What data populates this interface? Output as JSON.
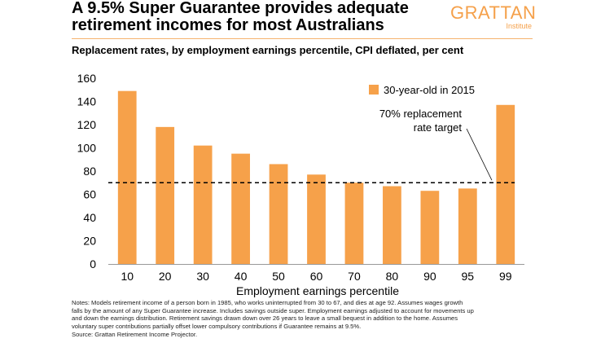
{
  "header": {
    "title_line1": "A 9.5% Super Guarantee provides adequate",
    "title_line2": "retirement incomes for most Australians",
    "subtitle": "Replacement rates, by employment earnings percentile, CPI deflated, per cent"
  },
  "logo": {
    "name": "GRATTAN",
    "sub": "Institute"
  },
  "colors": {
    "bar": "#f6a14a",
    "accent": "#f5a04a",
    "target_line": "#000000"
  },
  "chart_data": {
    "type": "bar",
    "categories": [
      "10",
      "20",
      "30",
      "40",
      "50",
      "60",
      "70",
      "80",
      "90",
      "95",
      "99"
    ],
    "series": [
      {
        "name": "30-year-old in 2015",
        "values": [
          149,
          118,
          102,
          95,
          86,
          77,
          70,
          67,
          63,
          65,
          137
        ]
      }
    ],
    "xlabel": "Employment earnings percentile",
    "ylabel": "",
    "ylim": [
      0,
      160
    ],
    "yticks": [
      0,
      20,
      40,
      60,
      80,
      100,
      120,
      140,
      160
    ],
    "grid": false,
    "legend": "top-right",
    "reference_line": {
      "value": 70,
      "style": "dashed",
      "label_line1": "70% replacement",
      "label_line2": "rate target"
    }
  },
  "notes": {
    "line1": "Notes: Models retirement income of a person born in 1985, who works uninterrupted from 30 to 67, and dies at age 92. Assumes wages growth",
    "line2": "falls by the amount of any Super Guarantee increase. Includes savings outside super. Employment earnings adjusted to account for movements up",
    "line3": "and down the earnings distribution. Retirement savings drawn down over 26 years to leave a small bequest in addition to the home. Assumes",
    "line4": "voluntary super contributions partially offset lower compulsory contributions if Guarantee remains at 9.5%.",
    "source": "Source: Grattan Retirement Income Projector."
  }
}
